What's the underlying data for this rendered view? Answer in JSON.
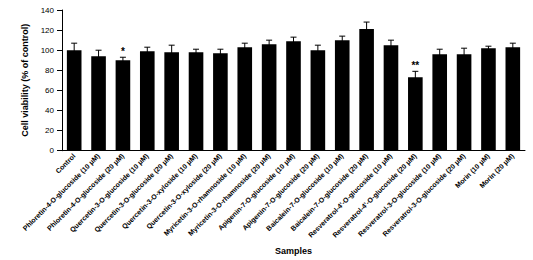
{
  "chart_data": {
    "type": "bar",
    "x_label": "Samples",
    "y_label": "Cell viability (% of control)",
    "categories": [
      "Control",
      "Phloretin-4-O-glucoside (10 μM)",
      "Phloretin-4-O-glucoside (20 μM)",
      "Quercetin-3-O-glucoside (10 μM)",
      "Quercetin-3-O-glucoside (20 μM)",
      "Quercetin-3-O-xyloside (10 μM)",
      "Quercetin-3-O-xyloside (20 μM)",
      "Myricetin-3-O-rhamnoside (10 μM)",
      "Myricetin-3-O-rhamnoside (20 μM)",
      "Apigenin-7-O-glucoside (10 μM)",
      "Apigenin-7-O-glucoside (20 μM)",
      "Baicalein-7-O-glucoside (10 μM)",
      "Baicalein-7-O-glucoside (20 μM)",
      "Resveratrol-4'-O-glucoside (10 μM)",
      "Resveratrol-4'-O-glucoside (20 μM)",
      "Resveratrol-3-O-glucoside (10 μM)",
      "Resveratrol-3-O-glucoside (20 μM)",
      "Morin (10 μM)",
      "Morin (20 μM)"
    ],
    "values": [
      100,
      94,
      90,
      99,
      98,
      98,
      97,
      103,
      106,
      109,
      100,
      110,
      121,
      105,
      73,
      96,
      96,
      102,
      103
    ],
    "errors": [
      7,
      6,
      3,
      4,
      7,
      3,
      4,
      4,
      4,
      4,
      5,
      4,
      7,
      5,
      6,
      5,
      6,
      2,
      4
    ],
    "annotations": [
      null,
      null,
      "*",
      null,
      null,
      null,
      null,
      null,
      null,
      null,
      null,
      null,
      null,
      null,
      "**",
      null,
      null,
      null,
      null
    ],
    "color": "#000000",
    "ylim": [
      0,
      140
    ],
    "yticks": [
      0,
      20,
      40,
      60,
      80,
      100,
      120,
      140
    ],
    "grid": false
  }
}
